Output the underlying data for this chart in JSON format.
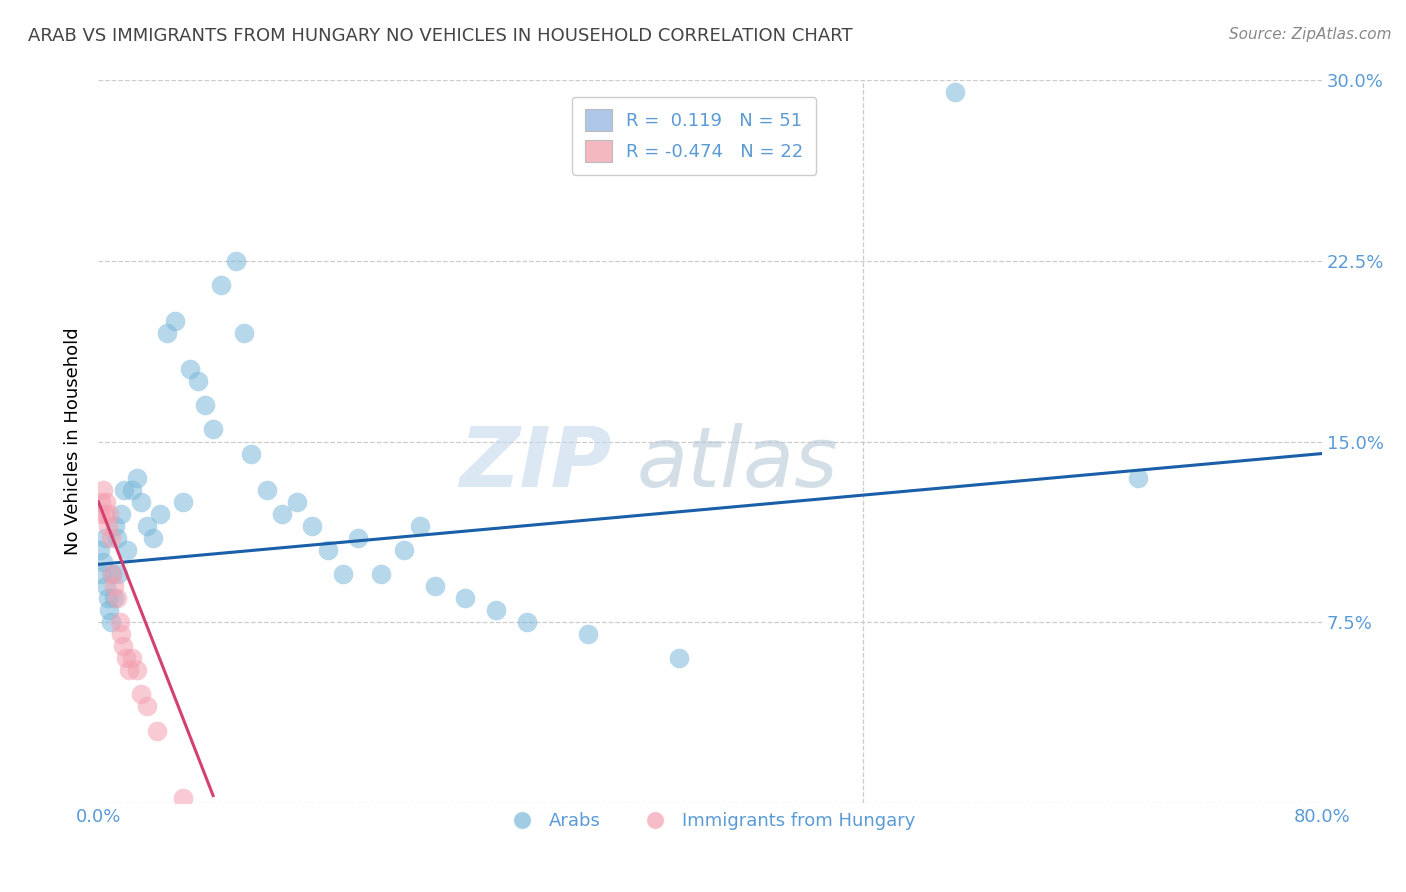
{
  "title": "ARAB VS IMMIGRANTS FROM HUNGARY NO VEHICLES IN HOUSEHOLD CORRELATION CHART",
  "source": "Source: ZipAtlas.com",
  "ylabel": "No Vehicles in Household",
  "xlim": [
    0.0,
    0.8
  ],
  "ylim": [
    0.0,
    0.3
  ],
  "xticks": [
    0.0,
    0.1,
    0.2,
    0.3,
    0.4,
    0.5,
    0.6,
    0.7,
    0.8
  ],
  "yticks": [
    0.0,
    0.075,
    0.15,
    0.225,
    0.3
  ],
  "xtick_labels": [
    "0.0%",
    "",
    "",
    "",
    "",
    "",
    "",
    "",
    "80.0%"
  ],
  "ytick_labels": [
    "",
    "7.5%",
    "15.0%",
    "22.5%",
    "30.0%"
  ],
  "legend_entries": [
    {
      "label": "Arabs",
      "color": "#aec6e8",
      "R": 0.119,
      "N": 51
    },
    {
      "label": "Immigrants from Hungary",
      "color": "#f4b8c1",
      "R": -0.474,
      "N": 22
    }
  ],
  "watermark_zip": "ZIP",
  "watermark_atlas": "atlas",
  "arab_color": "#7ab8d9",
  "hungary_color": "#f4a0b0",
  "arab_line_color": "#1a5fa8",
  "hungary_line_color": "#d44070",
  "background_color": "#ffffff",
  "grid_color": "#cccccc",
  "title_color": "#444444",
  "axis_color": "#5b9bd5",
  "arab_scatter_x": [
    0.001,
    0.002,
    0.003,
    0.004,
    0.005,
    0.006,
    0.007,
    0.008,
    0.009,
    0.01,
    0.011,
    0.012,
    0.013,
    0.015,
    0.017,
    0.019,
    0.022,
    0.025,
    0.028,
    0.032,
    0.036,
    0.04,
    0.045,
    0.05,
    0.055,
    0.06,
    0.065,
    0.07,
    0.075,
    0.08,
    0.09,
    0.095,
    0.1,
    0.11,
    0.12,
    0.13,
    0.14,
    0.15,
    0.16,
    0.17,
    0.185,
    0.2,
    0.21,
    0.22,
    0.24,
    0.26,
    0.28,
    0.32,
    0.38,
    0.56,
    0.68
  ],
  "arab_scatter_y": [
    0.105,
    0.095,
    0.1,
    0.11,
    0.09,
    0.085,
    0.08,
    0.075,
    0.095,
    0.085,
    0.115,
    0.11,
    0.095,
    0.12,
    0.13,
    0.105,
    0.13,
    0.135,
    0.125,
    0.115,
    0.11,
    0.12,
    0.195,
    0.2,
    0.125,
    0.18,
    0.175,
    0.165,
    0.155,
    0.215,
    0.225,
    0.195,
    0.145,
    0.13,
    0.12,
    0.125,
    0.115,
    0.105,
    0.095,
    0.11,
    0.095,
    0.105,
    0.115,
    0.09,
    0.085,
    0.08,
    0.075,
    0.07,
    0.06,
    0.295,
    0.135
  ],
  "hungary_scatter_x": [
    0.001,
    0.002,
    0.003,
    0.004,
    0.005,
    0.006,
    0.007,
    0.008,
    0.009,
    0.01,
    0.012,
    0.014,
    0.015,
    0.016,
    0.018,
    0.02,
    0.022,
    0.025,
    0.028,
    0.032,
    0.038,
    0.055
  ],
  "hungary_scatter_y": [
    0.12,
    0.125,
    0.13,
    0.12,
    0.125,
    0.115,
    0.12,
    0.11,
    0.095,
    0.09,
    0.085,
    0.075,
    0.07,
    0.065,
    0.06,
    0.055,
    0.06,
    0.055,
    0.045,
    0.04,
    0.03,
    0.002
  ],
  "arab_line_x": [
    0.0,
    0.8
  ],
  "arab_line_y": [
    0.099,
    0.145
  ],
  "hungary_line_x": [
    0.0,
    0.075
  ],
  "hungary_line_y": [
    0.125,
    0.003
  ]
}
